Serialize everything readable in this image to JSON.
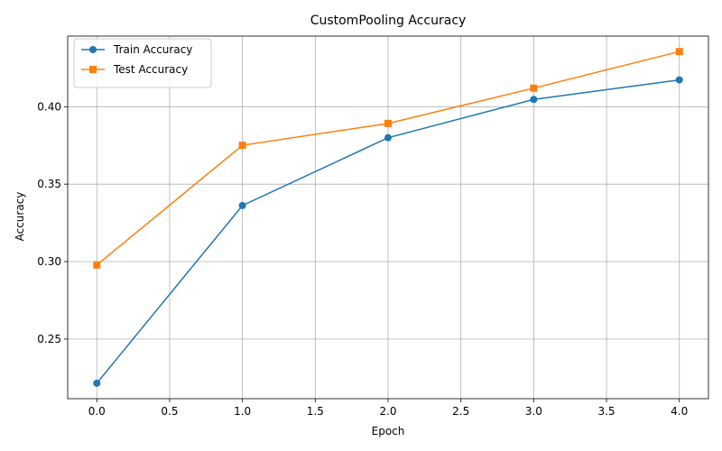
{
  "chart_data": {
    "type": "line",
    "title": "CustomPooling Accuracy",
    "xlabel": "Epoch",
    "ylabel": "Accuracy",
    "x": [
      0,
      1,
      2,
      3,
      4
    ],
    "series": [
      {
        "name": "Train Accuracy",
        "values": [
          0.2215,
          0.3362,
          0.38,
          0.4047,
          0.4173
        ],
        "color": "#1f77b4",
        "marker": "circle"
      },
      {
        "name": "Test Accuracy",
        "values": [
          0.2978,
          0.3751,
          0.3892,
          0.412,
          0.4356
        ],
        "color": "#ff7f0e",
        "marker": "square"
      }
    ],
    "xlim": [
      -0.2,
      4.2
    ],
    "ylim": [
      0.2115,
      0.4456
    ],
    "x_ticks": [
      "0.0",
      "0.5",
      "1.0",
      "1.5",
      "2.0",
      "2.5",
      "3.0",
      "3.5",
      "4.0"
    ],
    "y_ticks": [
      "0.25",
      "0.30",
      "0.35",
      "0.40"
    ],
    "grid": true,
    "legend_position": "top-left"
  }
}
